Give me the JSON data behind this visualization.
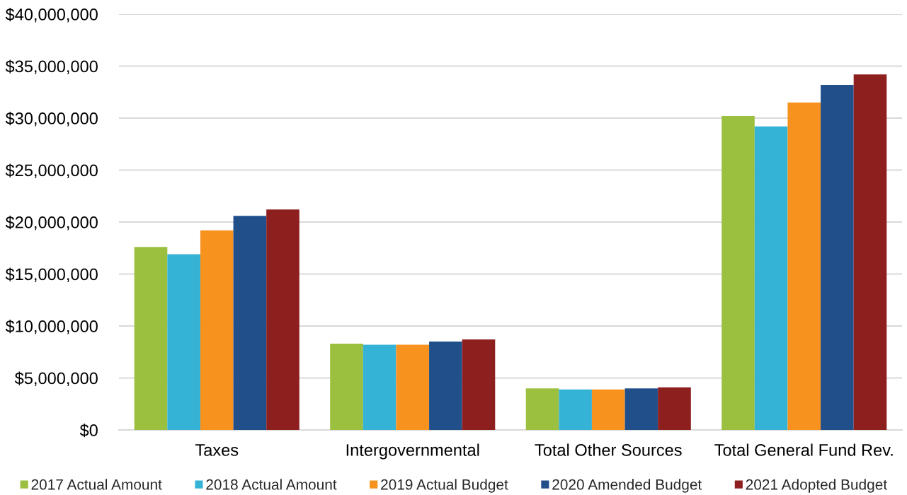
{
  "chart_data": {
    "type": "bar",
    "categories": [
      "Taxes",
      "Intergovernmental",
      "Total Other Sources",
      "Total General Fund Rev."
    ],
    "series": [
      {
        "name": "2017 Actual Amount",
        "color": "#9bbf3e",
        "values": [
          17600000,
          8300000,
          4000000,
          30200000
        ]
      },
      {
        "name": "2018 Actual Amount",
        "color": "#35b3d6",
        "values": [
          16900000,
          8200000,
          3900000,
          29200000
        ]
      },
      {
        "name": "2019 Actual Budget",
        "color": "#f7921e",
        "values": [
          19200000,
          8200000,
          3900000,
          31500000
        ]
      },
      {
        "name": "2020 Amended Budget",
        "color": "#204f8a",
        "values": [
          20600000,
          8500000,
          4000000,
          33200000
        ]
      },
      {
        "name": "2021 Adopted Budget",
        "color": "#8e1f1f",
        "values": [
          21200000,
          8700000,
          4100000,
          34200000
        ]
      }
    ],
    "ylim": [
      0,
      40000000
    ],
    "yticks": [
      {
        "value": 0,
        "label": "$0"
      },
      {
        "value": 5000000,
        "label": "$5,000,000"
      },
      {
        "value": 10000000,
        "label": "$10,000,000"
      },
      {
        "value": 15000000,
        "label": "$15,000,000"
      },
      {
        "value": 20000000,
        "label": "$20,000,000"
      },
      {
        "value": 25000000,
        "label": "$25,000,000"
      },
      {
        "value": 30000000,
        "label": "$30,000,000"
      },
      {
        "value": 35000000,
        "label": "$35,000,000"
      },
      {
        "value": 40000000,
        "label": "$40,000,000"
      }
    ],
    "grid": "y",
    "legend": "bottom"
  }
}
